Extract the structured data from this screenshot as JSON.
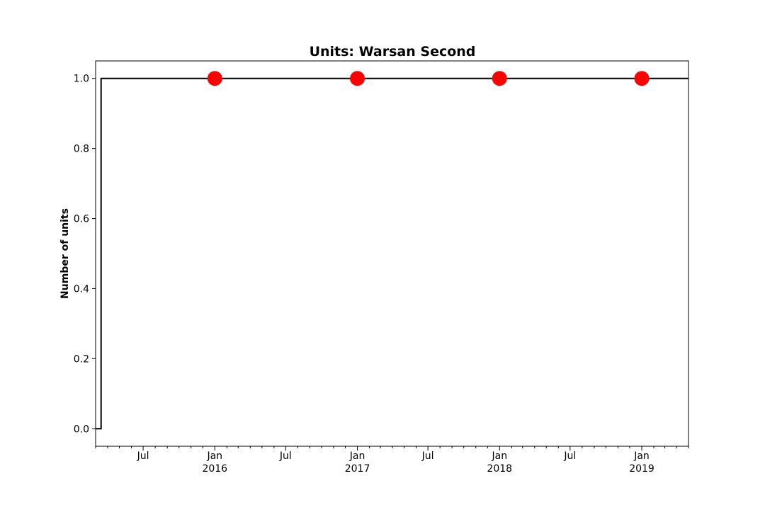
{
  "chart_data": {
    "type": "line",
    "title": "Units: Warsan Second",
    "xlabel": "",
    "ylabel": "Number of units",
    "xlim": [
      "2015-03-01",
      "2019-05-01"
    ],
    "ylim": [
      -0.05,
      1.05
    ],
    "grid": false,
    "legend": "none",
    "colors": {
      "line": "#000000",
      "markers": "#ff0000"
    },
    "y_ticks": [
      {
        "value": 0.0,
        "label": "0.0"
      },
      {
        "value": 0.2,
        "label": "0.2"
      },
      {
        "value": 0.4,
        "label": "0.4"
      },
      {
        "value": 0.6,
        "label": "0.6"
      },
      {
        "value": 0.8,
        "label": "0.8"
      },
      {
        "value": 1.0,
        "label": "1.0"
      }
    ],
    "x_major_ticks": [
      {
        "date": "2015-07-01",
        "label": "Jul",
        "sublabel": ""
      },
      {
        "date": "2016-01-01",
        "label": "Jan",
        "sublabel": "2016"
      },
      {
        "date": "2016-07-01",
        "label": "Jul",
        "sublabel": ""
      },
      {
        "date": "2017-01-01",
        "label": "Jan",
        "sublabel": "2017"
      },
      {
        "date": "2017-07-01",
        "label": "Jul",
        "sublabel": ""
      },
      {
        "date": "2018-01-01",
        "label": "Jan",
        "sublabel": "2018"
      },
      {
        "date": "2018-07-01",
        "label": "Jul",
        "sublabel": ""
      },
      {
        "date": "2019-01-01",
        "label": "Jan",
        "sublabel": "2019"
      }
    ],
    "step_series": [
      {
        "x": "2015-03-01",
        "y": 0
      },
      {
        "x": "2015-03-15",
        "y": 0
      },
      {
        "x": "2015-03-15",
        "y": 1
      },
      {
        "x": "2019-05-01",
        "y": 1
      }
    ],
    "markers": [
      {
        "x": "2016-01-01",
        "y": 1
      },
      {
        "x": "2017-01-01",
        "y": 1
      },
      {
        "x": "2018-01-01",
        "y": 1
      },
      {
        "x": "2019-01-01",
        "y": 1
      }
    ]
  }
}
